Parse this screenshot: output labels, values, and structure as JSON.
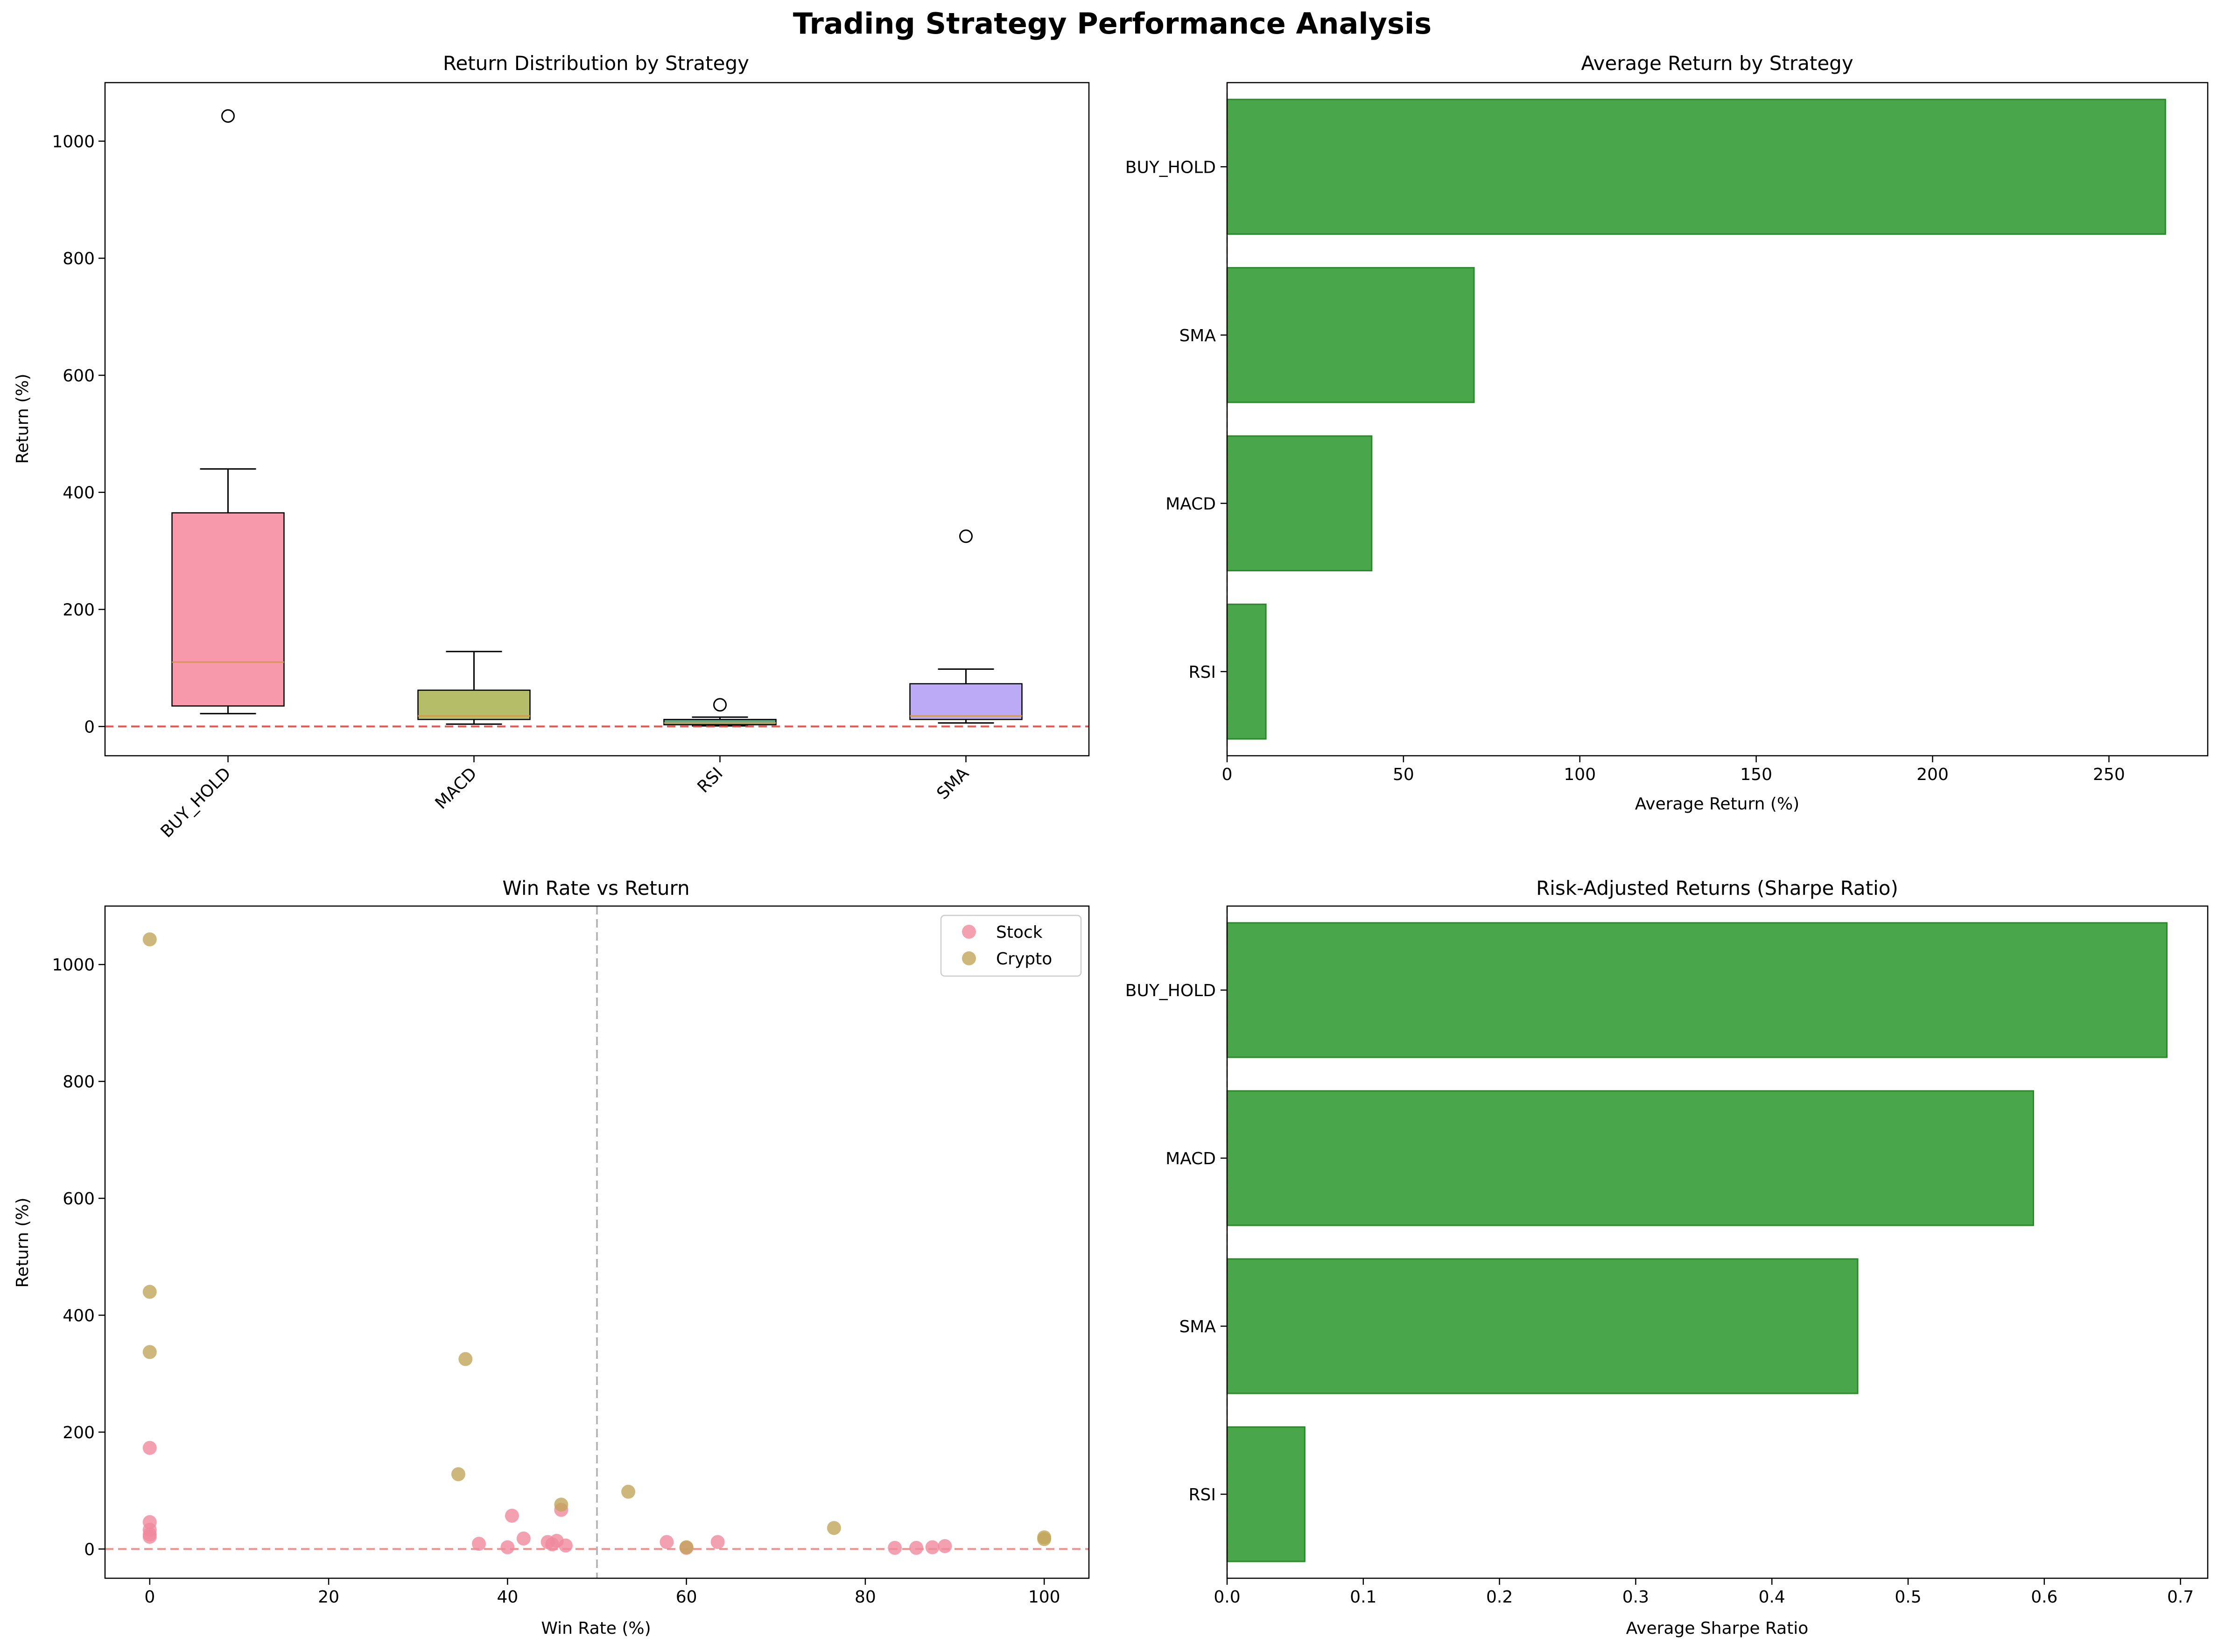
{
  "suptitle": "Trading Strategy Performance Analysis",
  "colors": {
    "bar_fill": "#4aa64a",
    "bar_edge": "#2a8a2a",
    "zero_line": "#e8453c",
    "vline": "#b8b8b8",
    "stock": "#f0899d",
    "crypto": "#c2a55a",
    "box_buy_hold": "#f799aa",
    "box_macd": "#b5bd68",
    "box_rsi": "#63aa86",
    "box_sma": "#bdaaf7",
    "median": "#d8984a"
  },
  "chart_data": [
    {
      "type": "box",
      "title": "Return Distribution by Strategy",
      "xlabel": "",
      "ylabel": "Return (%)",
      "categories": [
        "BUY_HOLD",
        "MACD",
        "RSI",
        "SMA"
      ],
      "boxes": [
        {
          "name": "BUY_HOLD",
          "whisker_low": 22,
          "q1": 35,
          "median": 110,
          "q3": 365,
          "whisker_high": 440,
          "outliers": [
            1043
          ]
        },
        {
          "name": "MACD",
          "whisker_low": 4,
          "q1": 12,
          "median": 18,
          "q3": 62,
          "whisker_high": 128,
          "outliers": []
        },
        {
          "name": "RSI",
          "whisker_low": 1,
          "q1": 3,
          "median": 6,
          "q3": 12,
          "whisker_high": 16,
          "outliers": [
            37
          ]
        },
        {
          "name": "SMA",
          "whisker_low": 6,
          "q1": 12,
          "median": 18,
          "q3": 73,
          "whisker_high": 98,
          "outliers": [
            325
          ]
        }
      ],
      "ylim": [
        -50,
        1100
      ],
      "yticks": [
        0,
        200,
        400,
        600,
        800,
        1000
      ],
      "reference_line": 0,
      "grid": false
    },
    {
      "type": "bar",
      "orientation": "horizontal",
      "title": "Average Return by Strategy",
      "xlabel": "Average Return (%)",
      "ylabel": "",
      "categories": [
        "BUY_HOLD",
        "SMA",
        "MACD",
        "RSI"
      ],
      "values": [
        266,
        70,
        41,
        11
      ],
      "xlim": [
        0,
        278
      ],
      "xticks": [
        0,
        50,
        100,
        150,
        200,
        250
      ],
      "grid": false
    },
    {
      "type": "scatter",
      "title": "Win Rate vs Return",
      "xlabel": "Win Rate (%)",
      "ylabel": "Return (%)",
      "xlim": [
        -5,
        105
      ],
      "ylim": [
        -50,
        1100
      ],
      "xticks": [
        0,
        20,
        40,
        60,
        80,
        100
      ],
      "yticks": [
        0,
        200,
        400,
        600,
        800,
        1000
      ],
      "reference_hline": 0,
      "reference_vline": 50,
      "legend": "top-right",
      "grid": false,
      "series": [
        {
          "name": "Stock",
          "points": [
            [
              0,
              173
            ],
            [
              0,
              46
            ],
            [
              0,
              33
            ],
            [
              0,
              25
            ],
            [
              0,
              21
            ],
            [
              36.8,
              9
            ],
            [
              40,
              3
            ],
            [
              40.5,
              57
            ],
            [
              41.8,
              18
            ],
            [
              44.5,
              12
            ],
            [
              45,
              8
            ],
            [
              45.5,
              14
            ],
            [
              46,
              67
            ],
            [
              46.5,
              6
            ],
            [
              57.8,
              12
            ],
            [
              60,
              2
            ],
            [
              63.5,
              12
            ],
            [
              83.3,
              2
            ],
            [
              85.7,
              2
            ],
            [
              87.5,
              3
            ],
            [
              88.9,
              5
            ]
          ]
        },
        {
          "name": "Crypto",
          "points": [
            [
              0,
              1043
            ],
            [
              0,
              440
            ],
            [
              0,
              337
            ],
            [
              34.5,
              128
            ],
            [
              35.3,
              325
            ],
            [
              46,
              76
            ],
            [
              53.5,
              98
            ],
            [
              60,
              3
            ],
            [
              76.5,
              36
            ],
            [
              100,
              20
            ],
            [
              100,
              17
            ]
          ]
        }
      ]
    },
    {
      "type": "bar",
      "orientation": "horizontal",
      "title": "Risk-Adjusted Returns (Sharpe Ratio)",
      "xlabel": "Average Sharpe Ratio",
      "ylabel": "",
      "categories": [
        "BUY_HOLD",
        "MACD",
        "SMA",
        "RSI"
      ],
      "values": [
        0.69,
        0.592,
        0.463,
        0.057
      ],
      "xlim": [
        0,
        0.72
      ],
      "xticks": [
        0.0,
        0.1,
        0.2,
        0.3,
        0.4,
        0.5,
        0.6,
        0.7
      ],
      "grid": false
    }
  ]
}
